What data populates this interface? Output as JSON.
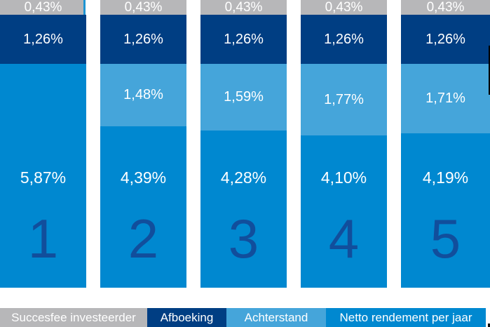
{
  "chart_data": {
    "type": "bar",
    "stacked": true,
    "orientation": "vertical",
    "categories": [
      "1",
      "2",
      "3",
      "4",
      "5"
    ],
    "series": [
      {
        "name": "Succesfee investeerder",
        "color": "#b7b7b9",
        "values": [
          0.43,
          0.43,
          0.43,
          0.43,
          0.43
        ]
      },
      {
        "name": "Afboeking",
        "color": "#003e83",
        "values": [
          1.26,
          1.26,
          1.26,
          1.26,
          1.26
        ]
      },
      {
        "name": "Achterstand",
        "color": "#45a5da",
        "values": [
          null,
          1.48,
          1.59,
          1.77,
          1.71
        ]
      },
      {
        "name": "Netto rendement per jaar",
        "color": "#0088d0",
        "values": [
          5.87,
          4.39,
          4.28,
          4.1,
          4.19
        ]
      }
    ],
    "value_format": "comma-decimal percent (e.g. 0,43%)",
    "title": "",
    "xlabel": "",
    "ylabel": "",
    "legend_position": "bottom",
    "grid": false,
    "axes_shown": false
  },
  "columns": [
    {
      "number": "1",
      "succesfee": "0,43%",
      "afboeking": "1,26%",
      "achterstand": "",
      "netto": "5,87%"
    },
    {
      "number": "2",
      "succesfee": "0,43%",
      "afboeking": "1,26%",
      "achterstand": "1,48%",
      "netto": "4,39%"
    },
    {
      "number": "3",
      "succesfee": "0,43%",
      "afboeking": "1,26%",
      "achterstand": "1,59%",
      "netto": "4,28%"
    },
    {
      "number": "4",
      "succesfee": "0,43%",
      "afboeking": "1,26%",
      "achterstand": "1,77%",
      "netto": "4,10%"
    },
    {
      "number": "5",
      "succesfee": "0,43%",
      "afboeking": "1,26%",
      "achterstand": "1,71%",
      "netto": "4,19%"
    }
  ],
  "legend": {
    "items": [
      {
        "label": "Succesfee investeerder",
        "color": "#b7b7b9"
      },
      {
        "label": "Afboeking",
        "color": "#003e83"
      },
      {
        "label": "Achterstand",
        "color": "#45a5da"
      },
      {
        "label": "Netto rendement per jaar",
        "color": "#0088d0"
      }
    ]
  },
  "colors": {
    "background": "#ffffff",
    "gray_segment": "#b7b7b9",
    "dark_blue_segment": "#003e83",
    "light_blue_segment": "#45a5da",
    "net_blue_segment": "#0088d0",
    "column_number_text": "#114e9c",
    "segment_label_text": "#ffffff",
    "artifact_black": "#000000"
  }
}
